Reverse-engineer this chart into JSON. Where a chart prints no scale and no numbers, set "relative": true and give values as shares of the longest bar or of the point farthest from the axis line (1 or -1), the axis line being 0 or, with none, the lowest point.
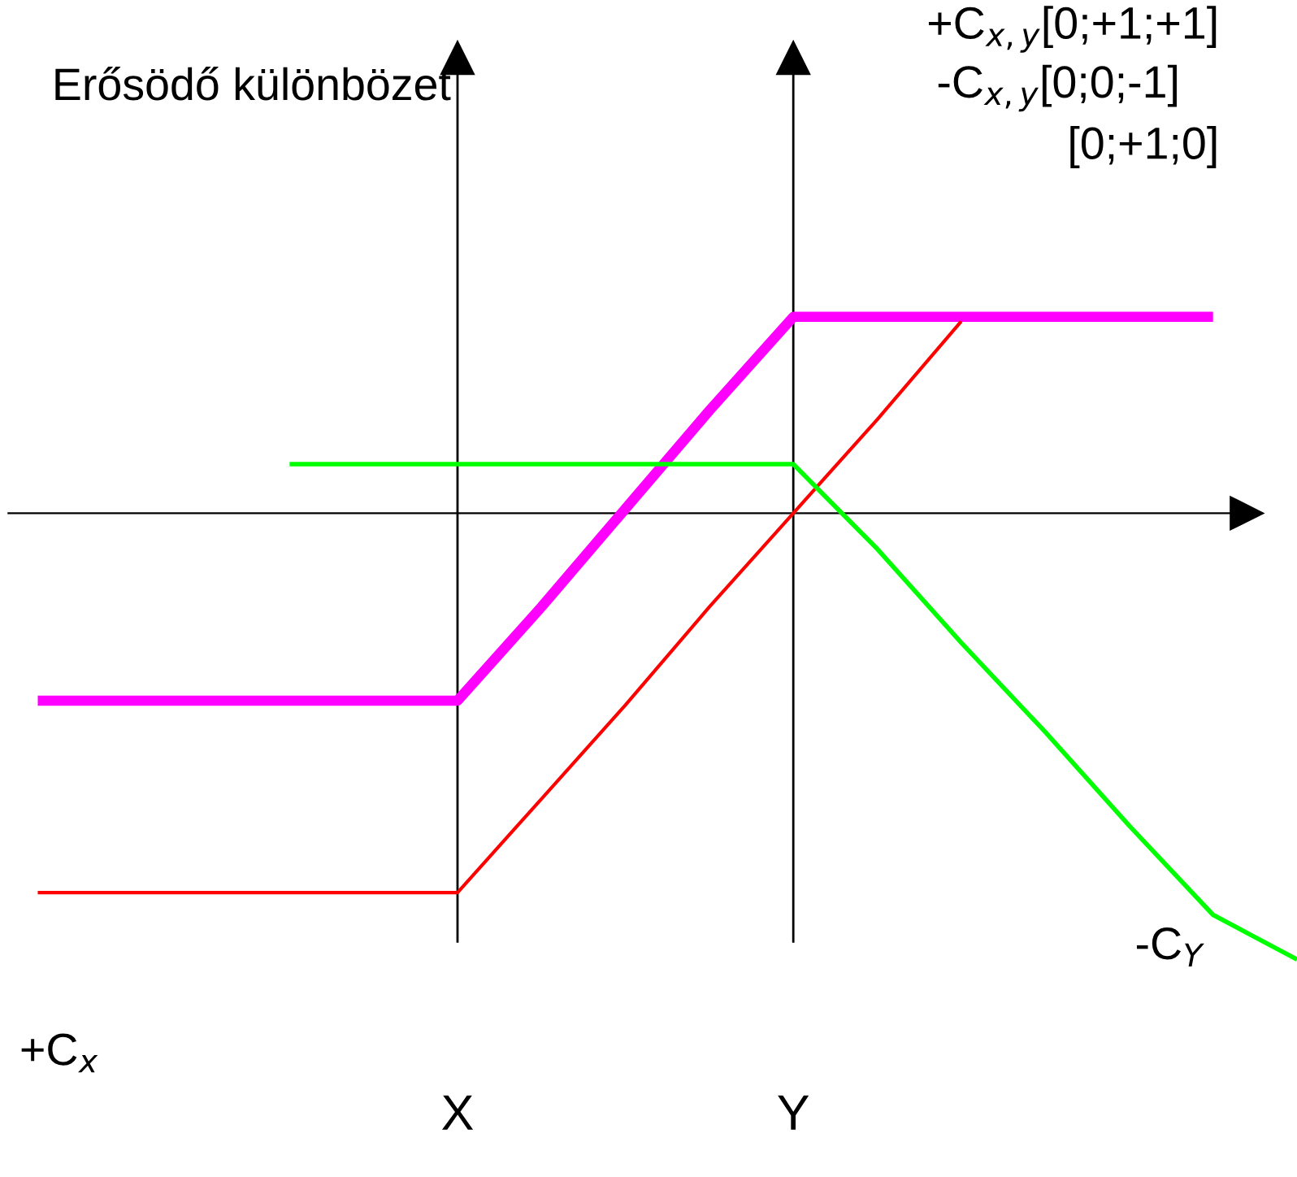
{
  "chart_data": {
    "type": "line",
    "relative": true,
    "title": "Erősödő különbözet",
    "categories": [
      null,
      null,
      null,
      null,
      null,
      null,
      "X",
      null,
      null,
      null,
      "Y",
      null,
      null,
      null,
      null,
      null,
      null
    ],
    "series": [
      {
        "color": "#ff00ff",
        "values": [
          null,
          -0.42,
          -0.42,
          -0.42,
          -0.42,
          -0.42,
          -0.42,
          -0.21,
          0.01,
          0.23,
          0.44,
          0.44,
          0.44,
          0.44,
          0.44,
          0.44,
          null
        ]
      },
      {
        "color": "#ff0000",
        "values": [
          null,
          -0.85,
          -0.85,
          -0.85,
          -0.85,
          -0.85,
          -0.85,
          -0.64,
          -0.43,
          -0.21,
          0,
          0.21,
          0.43,
          null,
          null,
          null,
          null
        ]
      },
      {
        "color": "#00ff00",
        "values": [
          null,
          null,
          null,
          null,
          0.11,
          0.11,
          0.11,
          0.11,
          0.11,
          0.11,
          0.11,
          -0.08,
          -0.29,
          -0.49,
          -0.7,
          -0.9,
          -1
        ]
      }
    ],
    "annotations": [
      "+C$_{x,y}$[0;+1;+1]",
      "-C$_{x,y}$[0;0;-1]",
      "[0;+1;0]",
      "-C$_{Y}$",
      "+C$_{x}$"
    ],
    "marker": "none",
    "line_style": "solid"
  }
}
